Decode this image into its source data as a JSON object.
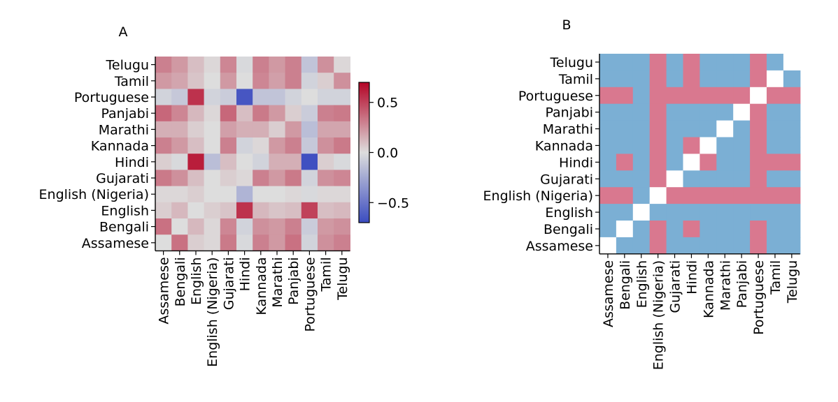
{
  "chart_data": [
    {
      "type": "heatmap",
      "title": "A",
      "xlabel": "",
      "ylabel": "",
      "x_categories": [
        "Assamese",
        "Bengali",
        "English",
        "English (Nigeria)",
        "Gujarati",
        "Hindi",
        "Kannada",
        "Marathi",
        "Panjabi",
        "Portuguese",
        "Tamil",
        "Telugu"
      ],
      "y_categories_top_to_bottom": [
        "Telugu",
        "Tamil",
        "Portuguese",
        "Panjabi",
        "Marathi",
        "Kannada",
        "Hindi",
        "Gujarati",
        "English (Nigeria)",
        "English",
        "Bengali",
        "Assamese"
      ],
      "matrix_rows_top_to_bottom": [
        [
          0.3,
          0.22,
          0.1,
          0.02,
          0.28,
          -0.02,
          0.3,
          0.22,
          0.3,
          -0.12,
          0.25,
          0.02
        ],
        [
          0.22,
          0.18,
          0.08,
          0.0,
          0.22,
          0.0,
          0.28,
          0.2,
          0.3,
          -0.05,
          0.05,
          0.25
        ],
        [
          -0.05,
          -0.1,
          0.55,
          -0.05,
          -0.08,
          -0.65,
          -0.12,
          -0.12,
          -0.05,
          0.0,
          -0.05,
          -0.05
        ],
        [
          0.38,
          0.28,
          0.12,
          0.02,
          0.38,
          0.1,
          0.32,
          0.22,
          0.05,
          -0.08,
          0.3,
          0.32
        ],
        [
          0.15,
          0.15,
          0.05,
          0.0,
          0.2,
          0.15,
          0.15,
          0.05,
          0.22,
          -0.15,
          0.18,
          0.18
        ],
        [
          0.3,
          0.22,
          0.1,
          0.0,
          0.3,
          -0.05,
          0.02,
          0.22,
          0.3,
          -0.1,
          0.25,
          0.32
        ],
        [
          0.05,
          -0.02,
          0.62,
          -0.15,
          0.1,
          0.0,
          -0.05,
          0.15,
          0.15,
          -0.68,
          0.05,
          -0.02
        ],
        [
          0.32,
          0.25,
          0.1,
          0.0,
          0.05,
          0.02,
          0.3,
          0.22,
          0.32,
          -0.05,
          0.25,
          0.28
        ],
        [
          0.02,
          0.02,
          0.05,
          0.0,
          0.0,
          -0.2,
          0.0,
          0.0,
          0.02,
          -0.02,
          0.02,
          0.02
        ],
        [
          0.05,
          0.12,
          0.0,
          0.05,
          0.08,
          0.55,
          0.12,
          0.08,
          0.1,
          0.5,
          0.1,
          0.12
        ],
        [
          0.35,
          0.0,
          0.12,
          0.02,
          0.28,
          -0.05,
          0.25,
          0.22,
          0.3,
          -0.08,
          0.22,
          0.25
        ],
        [
          0.0,
          0.35,
          0.05,
          0.02,
          0.32,
          -0.02,
          0.3,
          0.22,
          0.35,
          -0.05,
          0.25,
          0.3
        ]
      ],
      "colormap": {
        "negative": "#3b4cc0",
        "neutral": "#dddddd",
        "positive": "#b40426"
      },
      "vmin": -0.7,
      "vmax": 0.7,
      "colorbar_ticks": [
        {
          "value": 0.5,
          "label": "0.5"
        },
        {
          "value": 0.0,
          "label": "0.0"
        },
        {
          "value": -0.5,
          "label": "−0.5"
        }
      ]
    },
    {
      "type": "heatmap",
      "title": "B",
      "xlabel": "",
      "ylabel": "",
      "x_categories": [
        "Assamese",
        "Bengali",
        "English",
        "English (Nigeria)",
        "Gujarati",
        "Hindi",
        "Kannada",
        "Marathi",
        "Panjabi",
        "Portuguese",
        "Tamil",
        "Telugu"
      ],
      "y_categories_top_to_bottom": [
        "Telugu",
        "Tamil",
        "Portuguese",
        "Panjabi",
        "Marathi",
        "Kannada",
        "Hindi",
        "Gujarati",
        "English (Nigeria)",
        "English",
        "Bengali",
        "Assamese"
      ],
      "matrix_rows_top_to_bottom": [
        [
          "b",
          "b",
          "b",
          "p",
          "b",
          "p",
          "b",
          "b",
          "b",
          "p",
          "b",
          "w"
        ],
        [
          "b",
          "b",
          "b",
          "p",
          "b",
          "p",
          "b",
          "b",
          "b",
          "p",
          "w",
          "b"
        ],
        [
          "p",
          "p",
          "b",
          "p",
          "p",
          "p",
          "p",
          "p",
          "p",
          "w",
          "p",
          "p"
        ],
        [
          "b",
          "b",
          "b",
          "p",
          "b",
          "b",
          "b",
          "b",
          "w",
          "p",
          "b",
          "b"
        ],
        [
          "b",
          "b",
          "b",
          "p",
          "b",
          "b",
          "b",
          "w",
          "b",
          "p",
          "b",
          "b"
        ],
        [
          "b",
          "b",
          "b",
          "p",
          "b",
          "p",
          "w",
          "b",
          "b",
          "p",
          "b",
          "b"
        ],
        [
          "b",
          "p",
          "b",
          "p",
          "b",
          "w",
          "p",
          "b",
          "b",
          "p",
          "p",
          "p"
        ],
        [
          "b",
          "b",
          "b",
          "p",
          "w",
          "b",
          "b",
          "b",
          "b",
          "p",
          "b",
          "b"
        ],
        [
          "p",
          "p",
          "b",
          "w",
          "p",
          "p",
          "p",
          "p",
          "p",
          "p",
          "p",
          "p"
        ],
        [
          "b",
          "b",
          "w",
          "b",
          "b",
          "b",
          "b",
          "b",
          "b",
          "b",
          "b",
          "b"
        ],
        [
          "b",
          "w",
          "b",
          "p",
          "b",
          "p",
          "b",
          "b",
          "b",
          "p",
          "b",
          "b"
        ],
        [
          "w",
          "b",
          "b",
          "p",
          "b",
          "b",
          "b",
          "b",
          "b",
          "p",
          "b",
          "b"
        ]
      ],
      "cell_colors": {
        "b": "#7bafd4",
        "p": "#d9788f",
        "w": "#ffffff"
      }
    }
  ]
}
